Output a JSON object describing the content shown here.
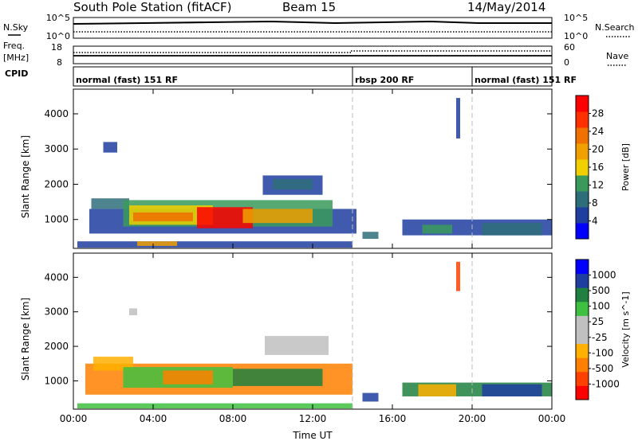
{
  "header": {
    "station": "South Pole Station (fitACF)",
    "beam": "Beam 15",
    "date": "14/May/2014"
  },
  "left_labels": {
    "nsky": "N.Sky",
    "freq_line1": "Freq.",
    "freq_line2": "[MHz]",
    "cpid": "CPID"
  },
  "right_labels": {
    "nsearch": "N.Search",
    "nave": "Nave"
  },
  "ticks": {
    "nsky_top": "10^5",
    "nsky_bottom": "10^0",
    "nsearch_top": "10^5",
    "nsearch_bottom": "10^0",
    "freq_top": "18",
    "freq_bottom": "8",
    "nave_top": "60",
    "nave_bottom": "0"
  },
  "cpid_segments": [
    {
      "label": "normal (fast) 151 RF",
      "start_hour": 0,
      "end_hour": 14
    },
    {
      "label": "rbsp 200 RF",
      "start_hour": 14,
      "end_hour": 20
    },
    {
      "label": "normal (fast) 151 RF",
      "start_hour": 20,
      "end_hour": 24
    }
  ],
  "colors": {
    "background": "#ffffff",
    "axis": "#000000",
    "dashed_divider": "#bbbbbb",
    "power_scale": [
      "#0000ff",
      "#1e3ea0",
      "#2e6e7a",
      "#3a9a5a",
      "#f0d000",
      "#f0a000",
      "#f07000",
      "#ff3000",
      "#ff0000"
    ],
    "velocity_scale": [
      "#ff0000",
      "#ff4000",
      "#ff8000",
      "#ffb000",
      "#c0c0c0",
      "#c0c0c0",
      "#40c040",
      "#208040",
      "#1e3ea0",
      "#0000ff"
    ]
  },
  "chart_data": [
    {
      "type": "heatmap",
      "title": "Power",
      "xlabel": "",
      "ylabel": "Slant Range [km]",
      "colorbar_label": "Power [dB]",
      "colorbar_ticks": [
        "4",
        "8",
        "12",
        "16",
        "20",
        "24",
        "28"
      ],
      "x_ticks": [
        "00:00",
        "04:00",
        "08:00",
        "12:00",
        "16:00",
        "20:00",
        "00:00"
      ],
      "y_ticks": [
        "1000",
        "2000",
        "3000",
        "4000"
      ],
      "xlim_hours": [
        0,
        24
      ],
      "ylim_km": [
        180,
        4700
      ],
      "grid": false,
      "blocks": [
        {
          "t0": 0.2,
          "t1": 14.0,
          "r0": 200,
          "r1": 380,
          "color": "#1e3ea0"
        },
        {
          "t0": 0.8,
          "t1": 14.2,
          "r0": 600,
          "r1": 1300,
          "color": "#1e3ea0"
        },
        {
          "t0": 0.9,
          "t1": 2.8,
          "r0": 1300,
          "r1": 1600,
          "color": "#2e6e7a"
        },
        {
          "t0": 2.5,
          "t1": 13.0,
          "r0": 800,
          "r1": 1550,
          "color": "#3a9a5a"
        },
        {
          "t0": 2.8,
          "t1": 7.0,
          "r0": 850,
          "r1": 1400,
          "color": "#f0d000"
        },
        {
          "t0": 3.0,
          "t1": 6.0,
          "r0": 950,
          "r1": 1200,
          "color": "#f07000"
        },
        {
          "t0": 6.2,
          "t1": 9.0,
          "r0": 750,
          "r1": 1350,
          "color": "#ff0000"
        },
        {
          "t0": 8.5,
          "t1": 12.0,
          "r0": 900,
          "r1": 1300,
          "color": "#f0a000"
        },
        {
          "t0": 9.5,
          "t1": 12.5,
          "r0": 1700,
          "r1": 2250,
          "color": "#1e3ea0"
        },
        {
          "t0": 10.0,
          "t1": 12.0,
          "r0": 1850,
          "r1": 2150,
          "color": "#2e6e7a"
        },
        {
          "t0": 1.5,
          "t1": 2.2,
          "r0": 2900,
          "r1": 3200,
          "color": "#1e3ea0"
        },
        {
          "t0": 3.2,
          "t1": 5.2,
          "r0": 250,
          "r1": 380,
          "color": "#f0a000"
        },
        {
          "t0": 14.5,
          "t1": 15.3,
          "r0": 450,
          "r1": 650,
          "color": "#2e6e7a"
        },
        {
          "t0": 16.5,
          "t1": 24.0,
          "r0": 550,
          "r1": 1000,
          "color": "#1e3ea0"
        },
        {
          "t0": 17.5,
          "t1": 19.0,
          "r0": 600,
          "r1": 850,
          "color": "#3a9a5a"
        },
        {
          "t0": 20.5,
          "t1": 23.5,
          "r0": 550,
          "r1": 900,
          "color": "#2e6e7a"
        },
        {
          "t0": 19.2,
          "t1": 19.4,
          "r0": 3300,
          "r1": 4450,
          "color": "#1e3ea0"
        }
      ]
    },
    {
      "type": "heatmap",
      "title": "Velocity",
      "xlabel": "Time UT",
      "ylabel": "Slant Range [km]",
      "colorbar_label": "Velocity [m s^-1]",
      "colorbar_ticks": [
        "-1000",
        "-500",
        "-100",
        "-25",
        "25",
        "100",
        "500",
        "1000"
      ],
      "x_ticks": [
        "00:00",
        "04:00",
        "08:00",
        "12:00",
        "16:00",
        "20:00",
        "00:00"
      ],
      "y_ticks": [
        "1000",
        "2000",
        "3000",
        "4000"
      ],
      "xlim_hours": [
        0,
        24
      ],
      "ylim_km": [
        180,
        4700
      ],
      "grid": false,
      "blocks": [
        {
          "t0": 0.2,
          "t1": 14.0,
          "r0": 200,
          "r1": 350,
          "color": "#40c040"
        },
        {
          "t0": 0.6,
          "t1": 14.0,
          "r0": 600,
          "r1": 1500,
          "color": "#ff8000"
        },
        {
          "t0": 1.0,
          "t1": 3.0,
          "r0": 1300,
          "r1": 1700,
          "color": "#ffb000"
        },
        {
          "t0": 2.5,
          "t1": 8.0,
          "r0": 800,
          "r1": 1400,
          "color": "#40c040"
        },
        {
          "t0": 4.5,
          "t1": 7.0,
          "r0": 900,
          "r1": 1300,
          "color": "#ff8000"
        },
        {
          "t0": 8.0,
          "t1": 12.5,
          "r0": 850,
          "r1": 1350,
          "color": "#208040"
        },
        {
          "t0": 9.6,
          "t1": 12.8,
          "r0": 1750,
          "r1": 2300,
          "color": "#c0c0c0"
        },
        {
          "t0": 2.8,
          "t1": 3.2,
          "r0": 2900,
          "r1": 3100,
          "color": "#c0c0c0"
        },
        {
          "t0": 14.5,
          "t1": 15.3,
          "r0": 400,
          "r1": 650,
          "color": "#1e3ea0"
        },
        {
          "t0": 16.5,
          "t1": 24.0,
          "r0": 550,
          "r1": 950,
          "color": "#208040"
        },
        {
          "t0": 17.3,
          "t1": 19.2,
          "r0": 550,
          "r1": 900,
          "color": "#ffb000"
        },
        {
          "t0": 20.5,
          "t1": 23.5,
          "r0": 550,
          "r1": 900,
          "color": "#1e3ea0"
        },
        {
          "t0": 19.2,
          "t1": 19.4,
          "r0": 3600,
          "r1": 4450,
          "color": "#ff4000"
        }
      ]
    }
  ]
}
